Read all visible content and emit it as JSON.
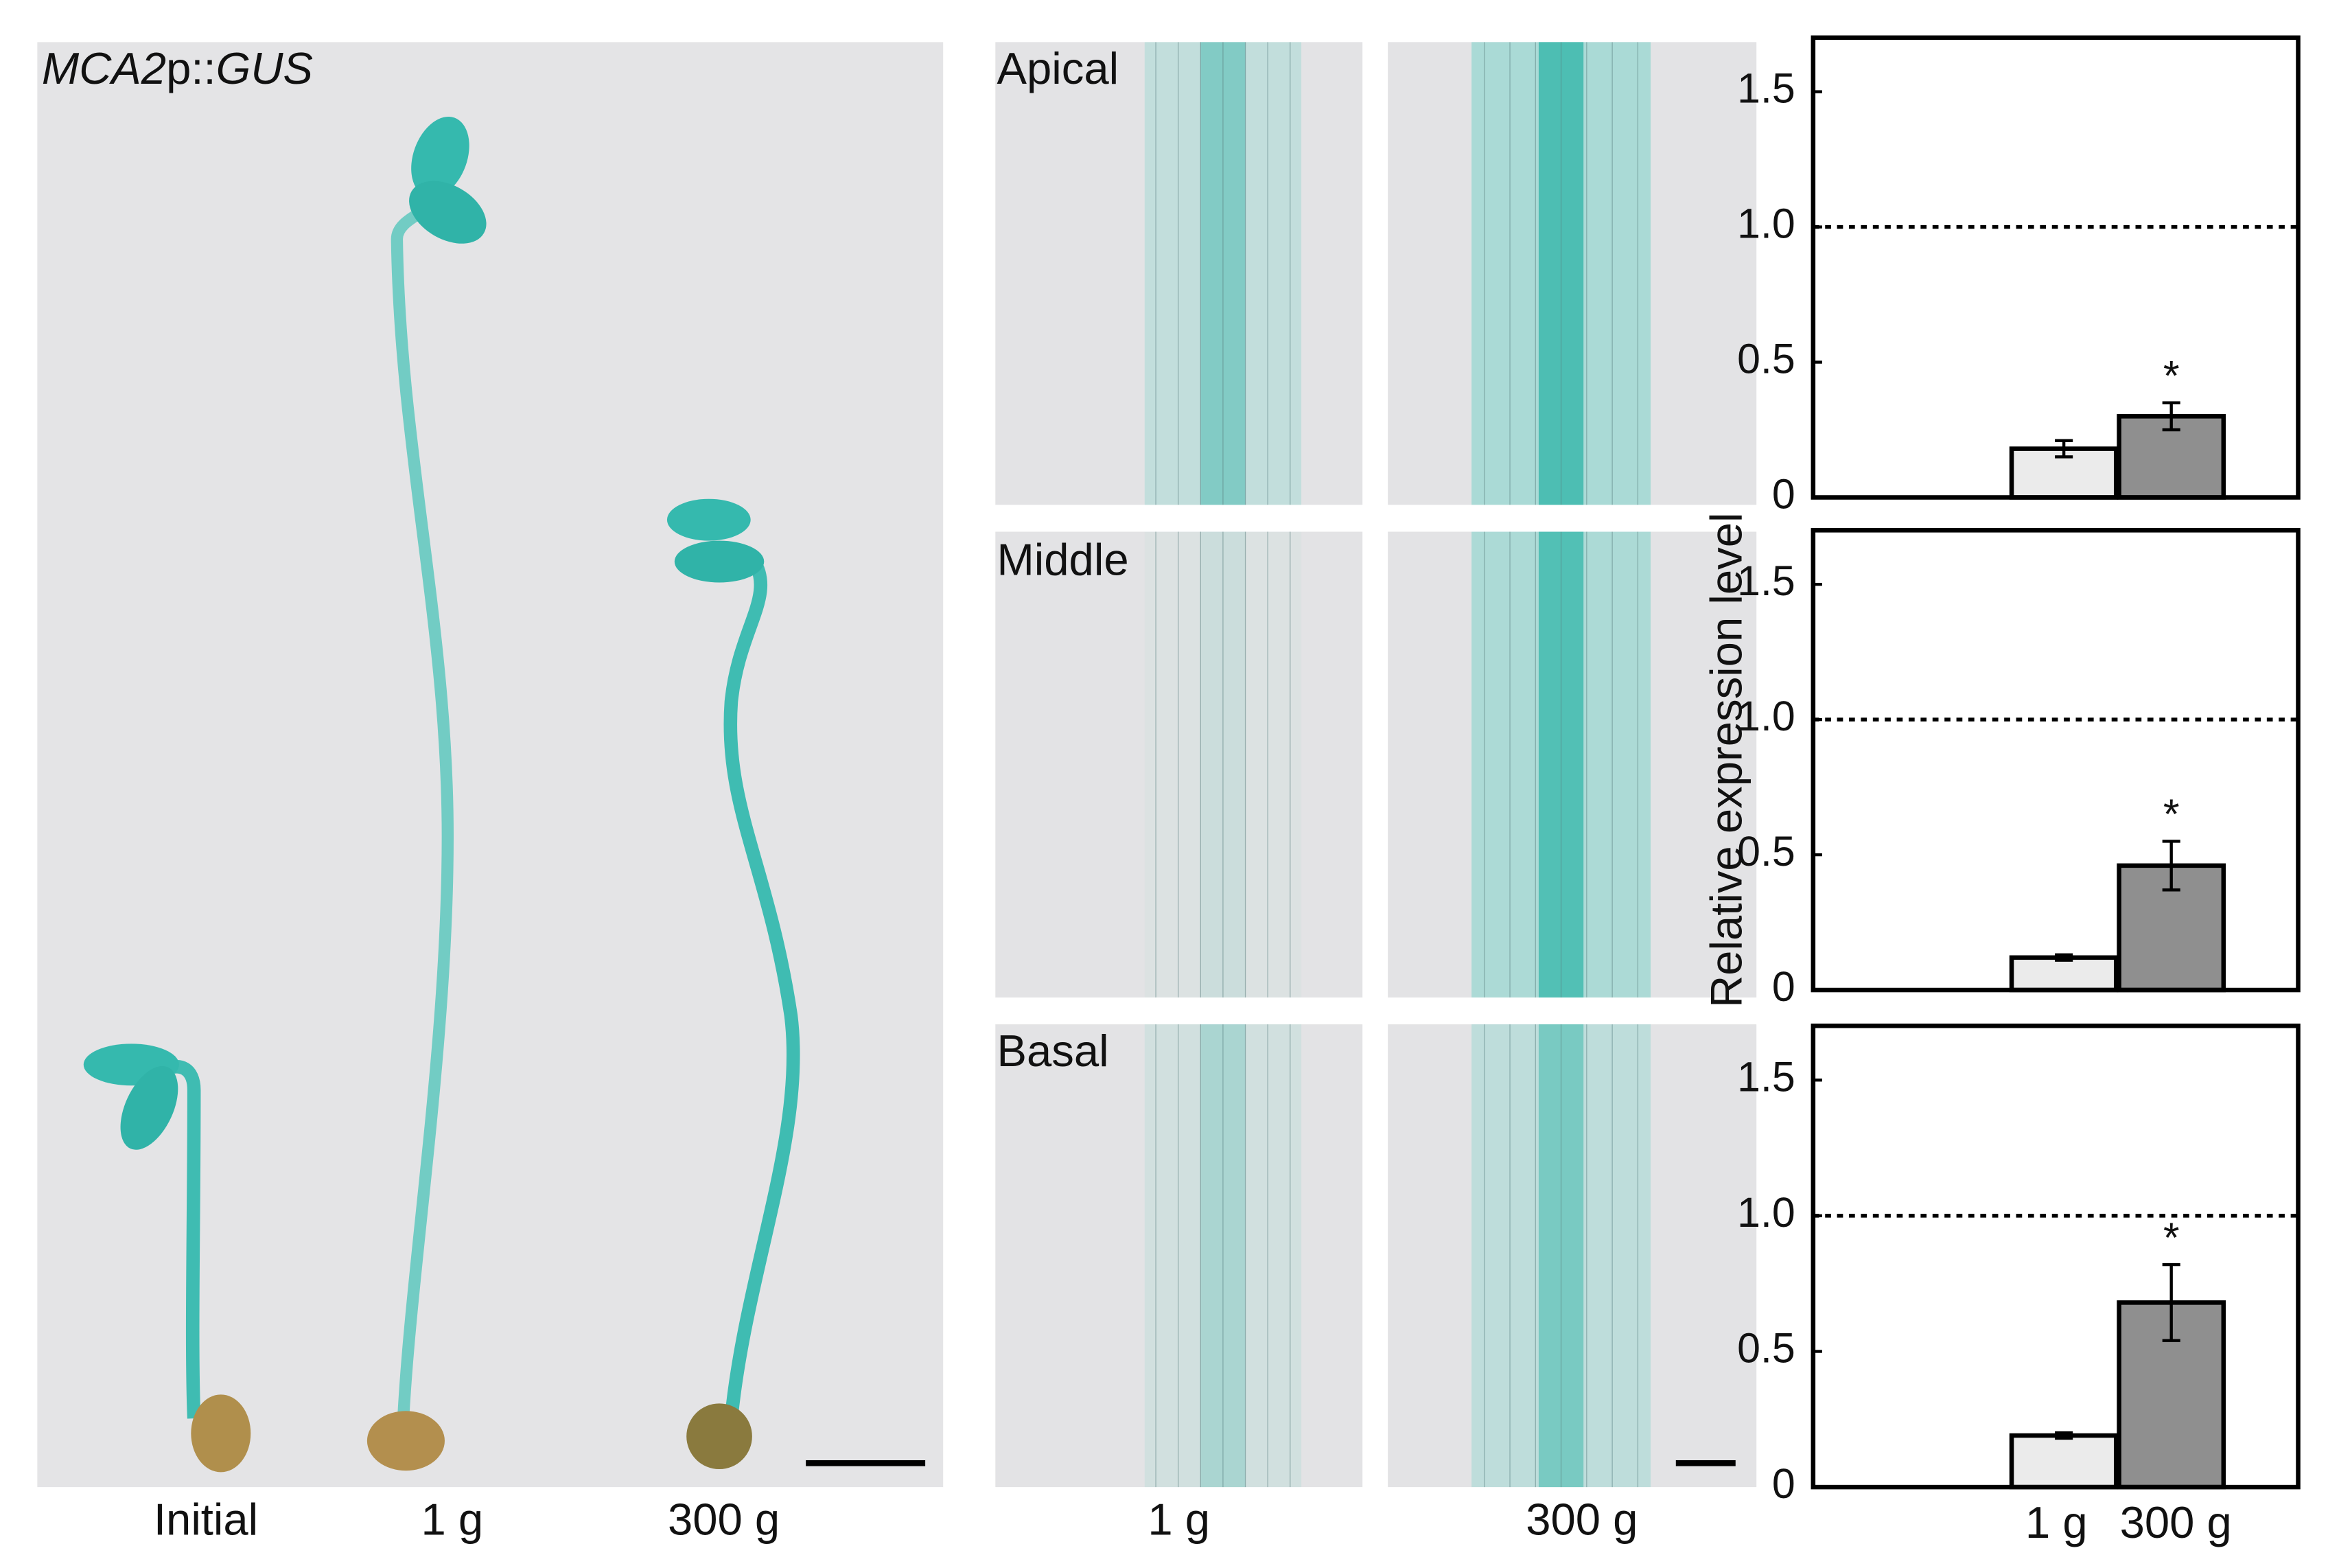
{
  "figure": {
    "stain_label": [
      "MCA2",
      "p::",
      "GUS"
    ],
    "seedling_labels": [
      "Initial",
      "1 g",
      "300 g"
    ],
    "region_labels": [
      "Apical",
      "Middle",
      "Basal"
    ],
    "column_labels": [
      "1 g",
      "300 g"
    ]
  },
  "chart_data": [
    {
      "type": "bar",
      "categories": [
        null,
        null
      ],
      "values": [
        0.18,
        0.3
      ],
      "errors": [
        0.03,
        0.05
      ],
      "colors": [
        "#ebebeb",
        "#8f8f8f"
      ],
      "ylim": [
        0,
        1.7
      ],
      "yticks": [
        0,
        0.5,
        {
          "value": 1,
          "label": "1.0"
        },
        1.5
      ],
      "reference_line": 1,
      "markers": [
        null,
        "*"
      ]
    },
    {
      "type": "bar",
      "categories": [
        null,
        null
      ],
      "values": [
        0.12,
        0.46
      ],
      "errors": [
        0.01,
        0.09
      ],
      "colors": [
        "#ebebeb",
        "#8f8f8f"
      ],
      "ylim": [
        0,
        1.7
      ],
      "ylabel": "Relative expression level",
      "yticks": [
        0,
        0.5,
        {
          "value": 1,
          "label": "1.0"
        },
        1.5
      ],
      "reference_line": 1,
      "markers": [
        null,
        "*"
      ]
    },
    {
      "type": "bar",
      "categories": [
        "1 g",
        "300 g"
      ],
      "values": [
        0.19,
        0.68
      ],
      "errors": [
        0.01,
        0.14
      ],
      "colors": [
        "#ebebeb",
        "#8f8f8f"
      ],
      "ylim": [
        0,
        1.7
      ],
      "yticks": [
        0,
        0.5,
        {
          "value": 1,
          "label": "1.0"
        },
        1.5
      ],
      "reference_line": 1,
      "markers": [
        null,
        "*"
      ]
    }
  ]
}
